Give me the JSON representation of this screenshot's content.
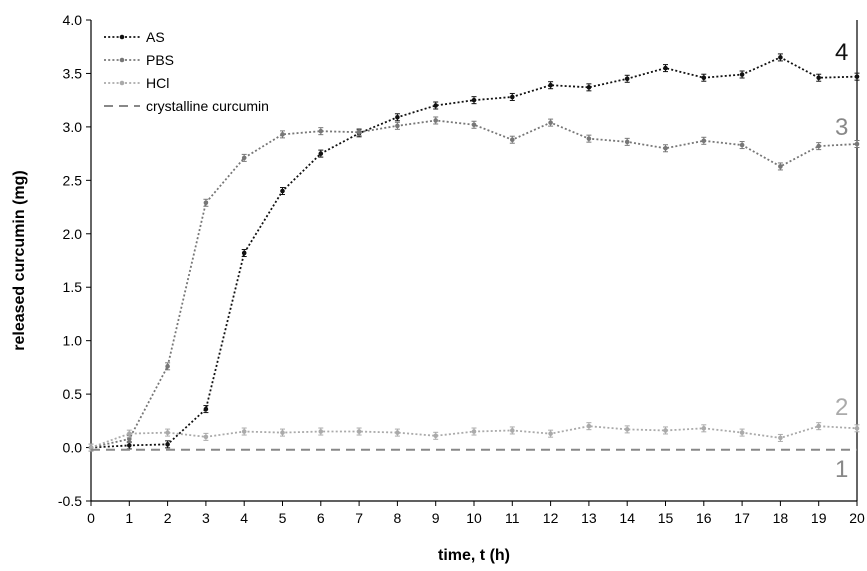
{
  "chart_data": {
    "type": "line",
    "xlabel": "time, t (h)",
    "ylabel": "released curcumin (mg)",
    "xlim": [
      0,
      20
    ],
    "ylim": [
      -0.5,
      4.0
    ],
    "x_ticks": [
      0,
      1,
      2,
      3,
      4,
      5,
      6,
      7,
      8,
      9,
      10,
      11,
      12,
      13,
      14,
      15,
      16,
      17,
      18,
      19,
      20
    ],
    "y_ticks": [
      "-0.5",
      "0.0",
      "0.5",
      "1.0",
      "1.5",
      "2.0",
      "2.5",
      "3.0",
      "3.5",
      "4.0"
    ],
    "grid": false,
    "legend_position": "top-left",
    "x": [
      0,
      1,
      2,
      3,
      4,
      5,
      6,
      7,
      8,
      9,
      10,
      11,
      12,
      13,
      14,
      15,
      16,
      17,
      18,
      19,
      20
    ],
    "series": [
      {
        "name": "AS",
        "color": "#111111",
        "style": "dotted",
        "marker": true,
        "curve_label": "4",
        "values": [
          0.0,
          0.02,
          0.03,
          0.36,
          1.82,
          2.4,
          2.75,
          2.94,
          3.09,
          3.2,
          3.25,
          3.28,
          3.39,
          3.37,
          3.45,
          3.55,
          3.46,
          3.49,
          3.65,
          3.46,
          3.47
        ]
      },
      {
        "name": "PBS",
        "color": "#777777",
        "style": "dotted",
        "marker": true,
        "curve_label": "3",
        "values": [
          0.0,
          0.08,
          0.76,
          2.29,
          2.71,
          2.93,
          2.96,
          2.95,
          3.01,
          3.06,
          3.02,
          2.88,
          3.04,
          2.89,
          2.86,
          2.8,
          2.87,
          2.83,
          2.63,
          2.82,
          2.84
        ]
      },
      {
        "name": "HCl",
        "color": "#aaaaaa",
        "style": "dotted",
        "marker": true,
        "curve_label": "2",
        "values": [
          0.0,
          0.13,
          0.14,
          0.1,
          0.15,
          0.14,
          0.15,
          0.15,
          0.14,
          0.11,
          0.15,
          0.16,
          0.13,
          0.2,
          0.17,
          0.16,
          0.18,
          0.14,
          0.09,
          0.2,
          0.18
        ]
      },
      {
        "name": "crystalline curcumin",
        "color": "#888888",
        "style": "dashed",
        "marker": false,
        "curve_label": "1",
        "values": [
          -0.02,
          -0.02,
          -0.02,
          -0.02,
          -0.02,
          -0.02,
          -0.02,
          -0.02,
          -0.02,
          -0.02,
          -0.02,
          -0.02,
          -0.02,
          -0.02,
          -0.02,
          -0.02,
          -0.02,
          -0.02,
          -0.02,
          -0.02,
          -0.02
        ]
      }
    ]
  }
}
